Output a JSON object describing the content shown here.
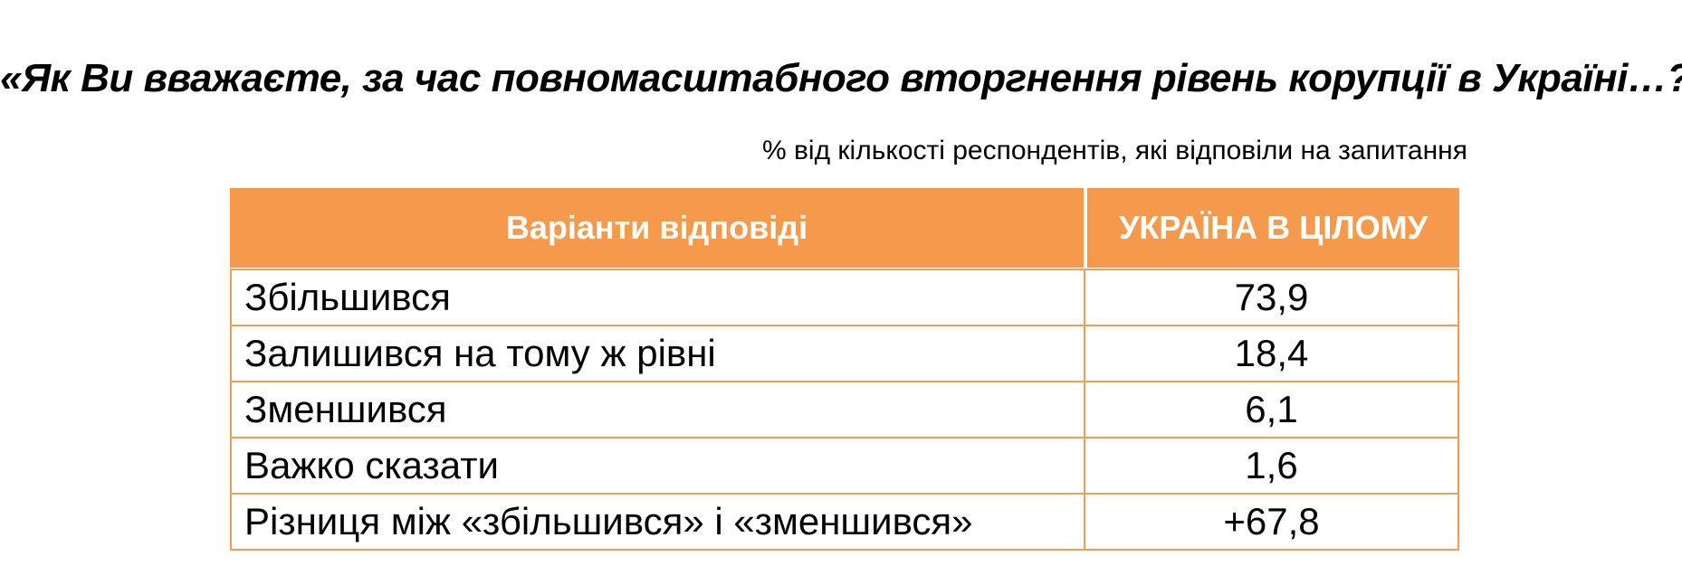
{
  "title": "«Як Ви вважаєте, за час повномасштабного вторгнення рівень корупції в Україні…?»",
  "subtitle": "% від кількості респондентів, які відповіли на запитання",
  "table": {
    "col_answers": "Варіанти відповіді",
    "col_ukraine": "УКРАЇНА В ЦІЛОМУ",
    "rows": [
      {
        "label": "Збільшився",
        "value": "73,9"
      },
      {
        "label": "Залишився на тому ж рівні",
        "value": "18,4"
      },
      {
        "label": "Зменшився",
        "value": "6,1"
      },
      {
        "label": "Важко сказати",
        "value": "1,6"
      },
      {
        "label": "Різниця між «збільшився» і «зменшився»",
        "value": "+67,8"
      }
    ]
  },
  "colors": {
    "header_bg": "#F5994D",
    "header_text": "#FFFFFF",
    "table_border": "#EF9D57",
    "body_text": "#000000",
    "background": "#FFFFFF"
  },
  "chart_data": {
    "type": "table",
    "title": "«Як Ви вважаєте, за час повномасштабного вторгнення рівень корупції в Україні…?»",
    "subtitle": "% від кількості респондентів, які відповіли на запитання",
    "columns": [
      "Варіанти відповіді",
      "УКРАЇНА В ЦІЛОМУ"
    ],
    "categories": [
      "Збільшився",
      "Залишився на тому ж рівні",
      "Зменшився",
      "Важко сказати"
    ],
    "values": [
      73.9,
      18.4,
      6.1,
      1.6
    ],
    "derived_row": {
      "label": "Різниця між «збільшився» і «зменшився»",
      "value": "+67,8"
    },
    "units": "percent"
  }
}
